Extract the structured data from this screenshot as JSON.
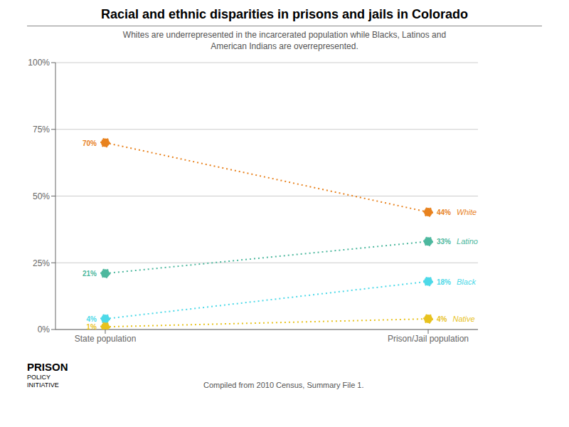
{
  "chart_data": {
    "type": "line",
    "title": "Racial and ethnic disparities in prisons and jails in Colorado",
    "subtitle": "Whites are underrepresented in the incarcerated population while Blacks, Latinos and\nAmerican Indians are overrepresented.",
    "footer": "Compiled from 2010 Census, Summary File 1.",
    "annotations": [
      "PRISON",
      "POLICY\nINITIATIVE"
    ],
    "categories": [
      "State population",
      "Prison/Jail population"
    ],
    "series": [
      {
        "name": "White",
        "color": "#e8821e",
        "values": [
          70,
          44
        ],
        "value_labels": [
          "70%",
          "44%"
        ]
      },
      {
        "name": "Latino",
        "color": "#4db89e",
        "values": [
          21,
          33
        ],
        "value_labels": [
          "21%",
          "33%"
        ]
      },
      {
        "name": "Black",
        "color": "#4dd9e8",
        "values": [
          4,
          18
        ],
        "value_labels": [
          "4%",
          "18%"
        ]
      },
      {
        "name": "Native",
        "color": "#e8c21e",
        "values": [
          1,
          4
        ],
        "value_labels": [
          "1%",
          "4%"
        ]
      }
    ],
    "ylim": [
      0,
      100
    ],
    "yticks": [
      {
        "value": 0,
        "label": "0%"
      },
      {
        "value": 25,
        "label": "25%"
      },
      {
        "value": 50,
        "label": "50%"
      },
      {
        "value": 75,
        "label": "75%"
      },
      {
        "value": 100,
        "label": "100%"
      }
    ],
    "grid": true,
    "data_labels": true,
    "line_style": "dotted"
  }
}
